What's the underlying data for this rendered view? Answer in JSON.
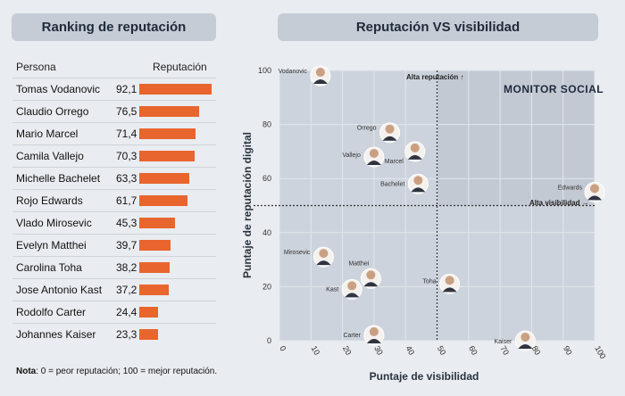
{
  "left_panel": {
    "title": "Ranking de reputación",
    "col_person": "Persona",
    "col_reputation": "Reputación",
    "note_bold": "Nota",
    "note_text": ": 0 = peor reputación; 100 = mejor reputación."
  },
  "right_panel": {
    "title": "Reputación VS visibilidad"
  },
  "colors": {
    "bar": "#e8652e",
    "pill": "#c5ccd6",
    "plot_bg": "#cdd3dc",
    "zone_bg": "#c3c9d3"
  },
  "chart_data": [
    {
      "type": "bar",
      "orientation": "horizontal",
      "categories": [
        "Tomas Vodanovic",
        "Claudio Orrego",
        "Mario Marcel",
        "Camila Vallejo",
        "Michelle Bachelet",
        "Rojo Edwards",
        "Vlado Mirosevic",
        "Evelyn Matthei",
        "Carolina Toha",
        "Jose Antonio Kast",
        "Rodolfo Carter",
        "Johannes Kaiser"
      ],
      "values": [
        92.1,
        76.5,
        71.4,
        70.3,
        63.3,
        61.7,
        45.3,
        39.7,
        38.2,
        37.2,
        24.4,
        23.3
      ],
      "value_labels": [
        "92,1",
        "76,5",
        "71,4",
        "70,3",
        "63,3",
        "61,7",
        "45,3",
        "39,7",
        "38,2",
        "37,2",
        "24,4",
        "23,3"
      ],
      "xlim": [
        0,
        100
      ]
    },
    {
      "type": "scatter",
      "title": "Reputación VS visibilidad",
      "xlabel": "Puntaje de visibilidad",
      "ylabel": "Puntaje de reputación digital",
      "xlim": [
        0,
        100
      ],
      "ylim": [
        0,
        100
      ],
      "xticks": [
        "0",
        "10",
        "20",
        "30",
        "40",
        "50",
        "60",
        "70",
        "80",
        "90",
        "100"
      ],
      "yticks": [
        "0",
        "20",
        "40",
        "60",
        "80",
        "100"
      ],
      "thresholds": {
        "x": 50,
        "y": 50
      },
      "annotations": {
        "high_reputation": "Alta reputación ↑",
        "high_visibility": "Alta visibilidad →",
        "brand": "MONITOR SOCIAL"
      },
      "points": [
        {
          "name": "Vodanovic",
          "x": 13,
          "y": 98
        },
        {
          "name": "Orrego",
          "x": 35,
          "y": 77
        },
        {
          "name": "Marcel",
          "x": 43,
          "y": 70
        },
        {
          "name": "Vallejo",
          "x": 30,
          "y": 68
        },
        {
          "name": "Bachelet",
          "x": 44,
          "y": 58
        },
        {
          "name": "Edwards",
          "x": 100,
          "y": 55
        },
        {
          "name": "Mirosevic",
          "x": 14,
          "y": 31
        },
        {
          "name": "Matthei",
          "x": 29,
          "y": 23
        },
        {
          "name": "Kast",
          "x": 23,
          "y": 19
        },
        {
          "name": "Toha",
          "x": 54,
          "y": 21
        },
        {
          "name": "Carter",
          "x": 30,
          "y": 2
        },
        {
          "name": "Kaiser",
          "x": 78,
          "y": 0
        }
      ]
    }
  ]
}
